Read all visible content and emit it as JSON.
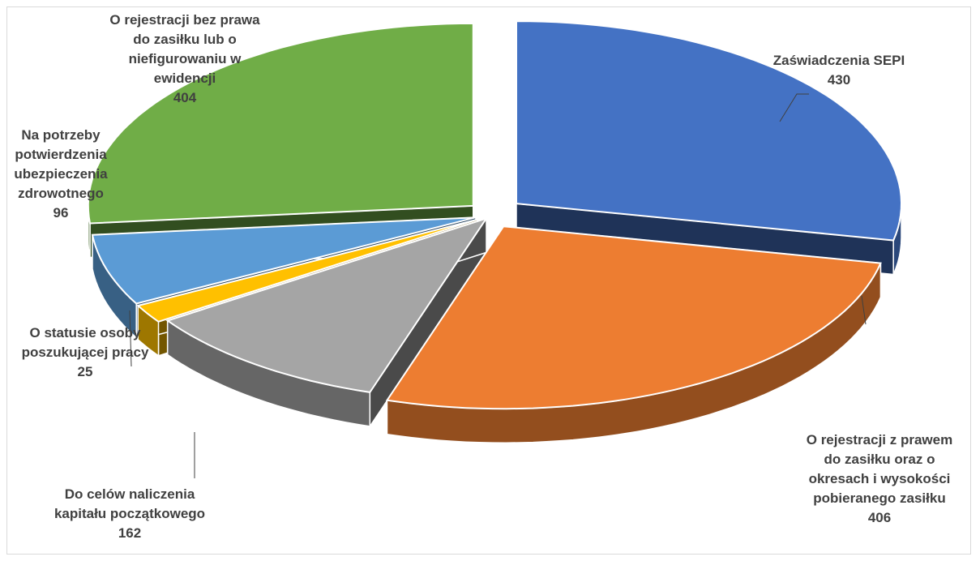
{
  "chart_data": {
    "type": "pie",
    "style": "3d-exploded",
    "title": "",
    "slices": [
      {
        "label": "Zaświadczenia SEPI",
        "value": 430,
        "color": "#4472C4"
      },
      {
        "label": "O rejestracji z prawem do zasiłku oraz o okresach i wysokości pobieranego zasiłku",
        "value": 406,
        "color": "#ED7D31"
      },
      {
        "label": "Do celów naliczenia kapitału początkowego",
        "value": 162,
        "color": "#A5A5A5"
      },
      {
        "label": "O statusie osoby poszukującej pracy",
        "value": 25,
        "color": "#FFC000"
      },
      {
        "label": "Na potrzeby potwierdzenia ubezpieczenia zdrowotnego",
        "value": 96,
        "color": "#5B9BD5"
      },
      {
        "label": "O rejestracji bez prawa do zasiłku lub o niefigurowaniu w ewidencji",
        "value": 404,
        "color": "#70AD47"
      }
    ],
    "labels": [
      {
        "lines": [
          "Zaświadczenia SEPI",
          "430"
        ]
      },
      {
        "lines": [
          "O rejestracji z prawem",
          "do zasiłku oraz o",
          "okresach i wysokości",
          "pobieranego zasiłku",
          "406"
        ]
      },
      {
        "lines": [
          "Do celów naliczenia",
          "kapitału początkowego",
          "162"
        ]
      },
      {
        "lines": [
          "O statusie osoby",
          "poszukującej pracy",
          "25"
        ]
      },
      {
        "lines": [
          "Na potrzeby",
          "potwierdzenia",
          "ubezpieczenia",
          "zdrowotnego",
          "96"
        ]
      },
      {
        "lines": [
          "O rejestracji bez prawa",
          "do zasiłku lub o",
          "niefigurowaniu w",
          "ewidencji",
          "404"
        ]
      }
    ]
  }
}
